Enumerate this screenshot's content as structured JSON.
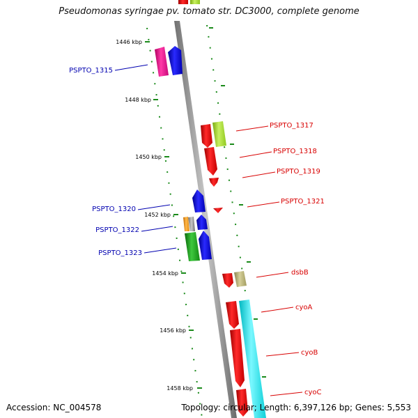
{
  "title": "Pseudomonas syringae pv. tomato str. DC3000, complete genome",
  "footer": {
    "accession": "Accession: NC_004578",
    "summary": "Topology: circular; Length: 6,397,126 bp; Genes: 5,553"
  },
  "scale_labels": [
    "1446 kbp",
    "1448 kbp",
    "1450 kbp",
    "1452 kbp",
    "1454 kbp",
    "1456 kbp",
    "1458 kbp"
  ],
  "left_genes": [
    "PSPTO_1315",
    "PSPTO_1320",
    "PSPTO_1322",
    "PSPTO_1323"
  ],
  "right_genes": [
    "PSPTO_1317",
    "PSPTO_1318",
    "PSPTO_1319",
    "PSPTO_1321",
    "dsbB",
    "cyoA",
    "cyoB",
    "cyoC"
  ],
  "colors": {
    "backbone": "#8a8a8a",
    "dots": "#1a8a1a",
    "blue": "#0000ee",
    "red": "#ee0000",
    "magenta": "#e8108a",
    "green": "#22a822",
    "lime": "#a8e030",
    "cyan": "#1ee6ee",
    "khaki": "#b5ae70",
    "orange": "#f59a10"
  }
}
